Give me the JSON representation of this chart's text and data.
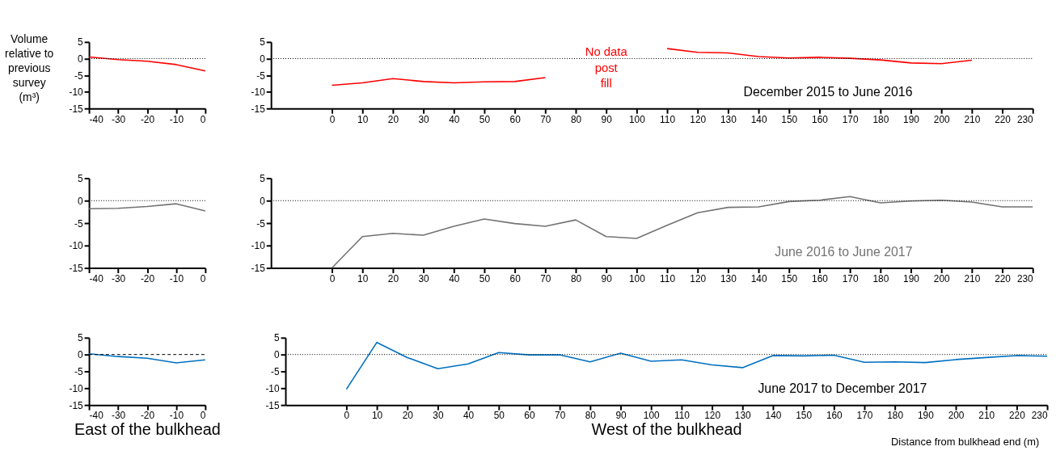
{
  "chart_data": [
    {
      "type": "line",
      "ylabel": "Volume relative to previous survey (m³)",
      "x": [
        -40,
        -30,
        -20,
        -10,
        0
      ],
      "xlim": [
        -40,
        0
      ],
      "xticks": [
        -40,
        -30,
        -20,
        -10,
        0
      ],
      "ylim": [
        -15,
        5
      ],
      "yticks": [
        -15,
        -10,
        -5,
        0,
        5
      ],
      "grid": false,
      "series": [
        {
          "color": "#ff0000",
          "values": [
            0.5,
            -0.3,
            -0.8,
            -1.8,
            -3.7
          ]
        }
      ],
      "ref_lines": [
        {
          "axis": "y",
          "value": 0,
          "line_style": "dotted"
        }
      ]
    },
    {
      "type": "line",
      "x": [
        0,
        10,
        20,
        30,
        40,
        50,
        60,
        70,
        80,
        90,
        100,
        110,
        120,
        130,
        140,
        150,
        160,
        170,
        180,
        190,
        200,
        210
      ],
      "xlim": [
        -20,
        230
      ],
      "xticks": [
        0,
        10,
        20,
        30,
        40,
        50,
        60,
        70,
        80,
        90,
        100,
        110,
        120,
        130,
        140,
        150,
        160,
        170,
        180,
        190,
        200,
        210,
        220,
        230
      ],
      "ylim": [
        -15,
        5
      ],
      "yticks": [
        -15,
        -10,
        -5,
        0,
        5
      ],
      "grid": false,
      "series": [
        {
          "color": "#ff0000",
          "values": [
            -8,
            -7.3,
            -6,
            -6.9,
            -7.3,
            -7,
            -6.9,
            -5.7,
            null,
            null,
            null,
            3,
            1.9,
            1.7,
            0.6,
            0.2,
            0.4,
            0.1,
            -0.4,
            -1.3,
            -1.5,
            -0.5
          ]
        }
      ],
      "ref_lines": [
        {
          "axis": "y",
          "value": 0,
          "line_style": "dotted"
        }
      ],
      "annotations": [
        "No data post fill",
        "December 2015 to June 2016"
      ]
    },
    {
      "type": "line",
      "x": [
        -40,
        -30,
        -20,
        -10,
        0
      ],
      "xlim": [
        -40,
        0
      ],
      "xticks": [
        -40,
        -30,
        -20,
        -10,
        0
      ],
      "ylim": [
        -15,
        5
      ],
      "yticks": [
        -15,
        -10,
        -5,
        0,
        5
      ],
      "grid": false,
      "series": [
        {
          "color": "#737373",
          "values": [
            -1.8,
            -1.7,
            -1.3,
            -0.7,
            -2.3
          ]
        }
      ],
      "ref_lines": [
        {
          "axis": "y",
          "value": 0,
          "line_style": "dotted"
        }
      ]
    },
    {
      "type": "line",
      "x": [
        0,
        10,
        20,
        30,
        40,
        50,
        60,
        70,
        80,
        90,
        100,
        110,
        120,
        130,
        140,
        150,
        160,
        170,
        180,
        190,
        200,
        210,
        220,
        230
      ],
      "xlim": [
        -20,
        230
      ],
      "xticks": [
        0,
        10,
        20,
        30,
        40,
        50,
        60,
        70,
        80,
        90,
        100,
        110,
        120,
        130,
        140,
        150,
        160,
        170,
        180,
        190,
        200,
        210,
        220,
        230
      ],
      "ylim": [
        -15,
        5
      ],
      "yticks": [
        -15,
        -10,
        -5,
        0,
        5
      ],
      "grid": false,
      "series": [
        {
          "color": "#737373",
          "values": [
            -15,
            -8,
            -7.3,
            -7.7,
            -5.7,
            -4.1,
            -5.1,
            -5.7,
            -4.3,
            -8,
            -8.4,
            -5.5,
            -2.7,
            -1.5,
            -1.4,
            -0.2,
            0.1,
            0.9,
            -0.5,
            -0.1,
            0.1,
            -0.3,
            -1.4,
            -1.4
          ]
        }
      ],
      "ref_lines": [
        {
          "axis": "y",
          "value": 0,
          "line_style": "dotted"
        }
      ],
      "annotations": [
        "June 2016 to June 2017"
      ]
    },
    {
      "type": "line",
      "xlabel": "East of the bulkhead",
      "x": [
        -40,
        -30,
        -20,
        -10,
        0
      ],
      "xlim": [
        -40,
        0
      ],
      "xticks": [
        -40,
        -30,
        -20,
        -10,
        0
      ],
      "ylim": [
        -15,
        5
      ],
      "yticks": [
        -15,
        -10,
        -5,
        0,
        5
      ],
      "grid": false,
      "series": [
        {
          "color": "#0070c0",
          "values": [
            0.2,
            -0.6,
            -1.1,
            -2.5,
            -1.6
          ]
        }
      ],
      "ref_lines": [
        {
          "axis": "y",
          "value": 0,
          "line_style": "dashed"
        }
      ]
    },
    {
      "type": "line",
      "xlabel": "West of the bulkhead",
      "x": [
        0,
        10,
        20,
        30,
        40,
        50,
        60,
        70,
        80,
        90,
        100,
        110,
        120,
        130,
        140,
        150,
        160,
        170,
        180,
        190,
        200,
        210,
        220,
        230
      ],
      "xlim": [
        -20,
        230
      ],
      "xticks": [
        0,
        10,
        20,
        30,
        40,
        50,
        60,
        70,
        80,
        90,
        100,
        110,
        120,
        130,
        140,
        150,
        160,
        170,
        180,
        190,
        200,
        210,
        220,
        230
      ],
      "ylim": [
        -15,
        5
      ],
      "yticks": [
        -15,
        -10,
        -5,
        0,
        5
      ],
      "grid": false,
      "series": [
        {
          "color": "#0070c0",
          "values": [
            -10.3,
            3.6,
            -0.9,
            -4.2,
            -2.8,
            0.6,
            -0.1,
            -0.1,
            -2.2,
            0.4,
            -2,
            -1.6,
            -3.1,
            -3.9,
            -0.3,
            -0.4,
            -0.2,
            -2.3,
            -2.2,
            -2.4,
            -1.5,
            -0.9,
            -0.3,
            -0.5
          ]
        }
      ],
      "ref_lines": [
        {
          "axis": "y",
          "value": 0,
          "line_style": "dotted"
        }
      ],
      "annotations": [
        "June 2017 to December 2017",
        "Distance from bulkhead end (m)"
      ]
    }
  ]
}
